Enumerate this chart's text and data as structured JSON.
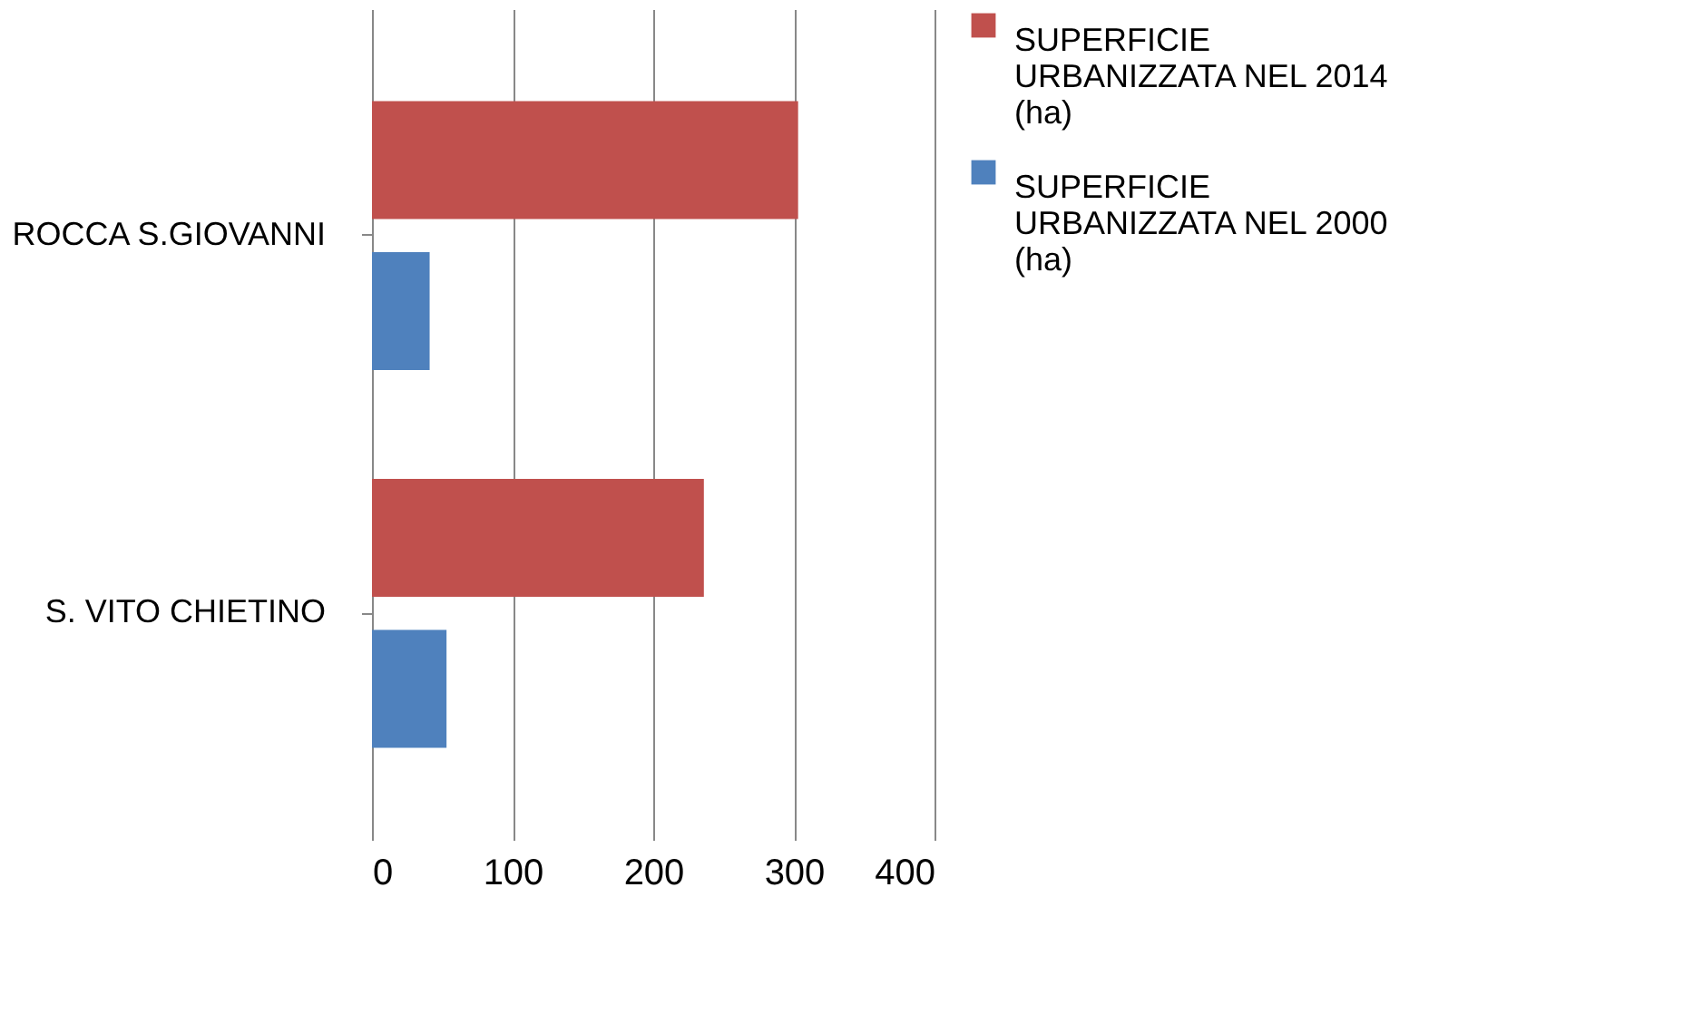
{
  "chart_data": {
    "type": "bar",
    "orientation": "horizontal",
    "categories": [
      "ROCCA S.GIOVANNI",
      "S. VITO CHIETINO"
    ],
    "series": [
      {
        "name": "SUPERFICIE URBANIZZATA NEL 2014 (ha)",
        "color": "#c0504d",
        "values": [
          303,
          236
        ]
      },
      {
        "name": "SUPERFICIE URBANIZZATA NEL 2000 (ha)",
        "color": "#4f81bd",
        "values": [
          41,
          53
        ]
      }
    ],
    "xlim": [
      0,
      400
    ],
    "xticks": [
      0,
      100,
      200,
      300,
      400
    ],
    "grid": "x",
    "legend": "right"
  }
}
